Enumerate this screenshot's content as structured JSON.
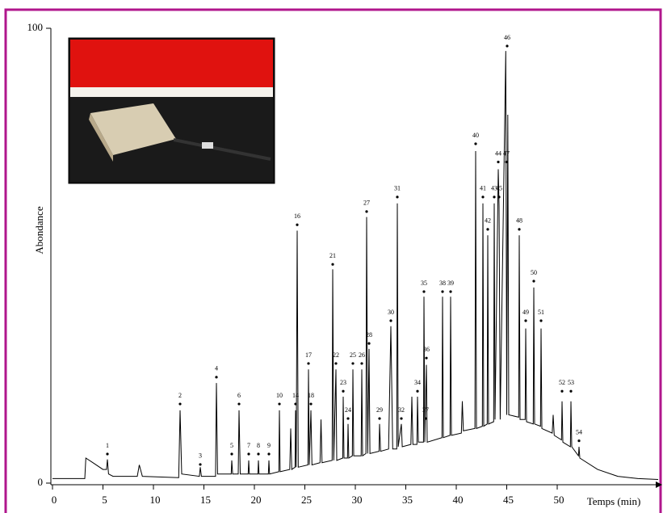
{
  "chart_data": {
    "type": "line",
    "y_label": "Abondance",
    "x_label": "Temps (min)",
    "xlim": [
      0,
      60
    ],
    "ylim": [
      0,
      100
    ],
    "xticks": [
      0,
      5,
      10,
      15,
      20,
      25,
      30,
      35,
      40,
      45,
      50
    ],
    "yticks": [
      0,
      100
    ],
    "color": "#000000",
    "x": [
      0,
      3.2,
      3.3,
      4,
      5,
      5.35,
      5.44,
      5.55,
      6,
      8.4,
      8.6,
      8.9,
      12.5,
      12.64,
      12.8,
      14.55,
      14.64,
      14.75,
      16.15,
      16.24,
      16.35,
      17.7,
      17.76,
      17.85,
      18.4,
      18.48,
      18.6,
      19.38,
      19.44,
      19.5,
      20.35,
      20.4,
      20.46,
      21.38,
      21.44,
      21.5,
      22.42,
      22.48,
      22.55,
      23.5,
      23.6,
      23.7,
      24.03,
      24.08,
      24.14,
      24.24,
      24.34,
      25.3,
      25.36,
      25.44,
      25.6,
      25.7,
      26.5,
      26.6,
      26.7,
      27.7,
      27.76,
      27.86,
      28.08,
      28.16,
      28.75,
      28.8,
      28.88,
      29.22,
      29.28,
      29.35,
      29.7,
      29.76,
      29.84,
      30.58,
      30.64,
      30.72,
      31.05,
      31.12,
      31.22,
      31.36,
      31.45,
      32.35,
      32.4,
      32.5,
      33.3,
      33.52,
      33.7,
      34.1,
      34.16,
      34.25,
      34.56,
      34.65,
      35.5,
      35.6,
      35.7,
      36.1,
      36.16,
      36.25,
      36.75,
      36.8,
      36.88,
      37.04,
      37.12,
      38.58,
      38.64,
      38.72,
      39.38,
      39.44,
      39.52,
      40.5,
      40.6,
      40.7,
      41.85,
      41.92,
      42.0,
      42.58,
      42.64,
      42.72,
      43.06,
      43.12,
      43.2,
      43.7,
      43.76,
      43.84,
      44.16,
      44.24,
      44.35,
      44.9,
      45.0,
      45.1,
      45.2,
      46.18,
      46.24,
      46.32,
      46.82,
      46.88,
      46.96,
      47.62,
      47.68,
      47.76,
      48.34,
      48.4,
      48.48,
      49.5,
      49.6,
      49.7,
      50.42,
      50.48,
      50.56,
      51.3,
      51.36,
      51.44,
      52.1,
      52.16,
      52.24,
      54,
      56,
      58,
      60
    ],
    "values": [
      1,
      1,
      5.5,
      4.5,
      3,
      3,
      5.2,
      2,
      1.5,
      1.5,
      4,
      1.5,
      1.2,
      16,
      2,
      1.5,
      3.5,
      1.5,
      1.5,
      22,
      2,
      2,
      5,
      2,
      2,
      16,
      2,
      2,
      5,
      2,
      2,
      5,
      2,
      2,
      5,
      2,
      2.5,
      16,
      2.5,
      3,
      12,
      3,
      3.5,
      16,
      3.5,
      55.5,
      3.5,
      4,
      25,
      4,
      16,
      4,
      4.5,
      14,
      4.5,
      5,
      47,
      5,
      25,
      5,
      5.5,
      19,
      5.5,
      5.5,
      13,
      5.5,
      6,
      25,
      6,
      6,
      25,
      6,
      6.5,
      58.5,
      6.5,
      29.5,
      6.5,
      7,
      13,
      7,
      7.5,
      34.5,
      7.5,
      7.5,
      61.5,
      8,
      13,
      8,
      8.5,
      19,
      8.5,
      8.5,
      19,
      9,
      9,
      41,
      9,
      26,
      9,
      10,
      41,
      10,
      10.5,
      41,
      10.5,
      11,
      18,
      11.5,
      12,
      73,
      12,
      12.5,
      61.5,
      12.5,
      13,
      54.5,
      13,
      13.5,
      61.5,
      14,
      69,
      61,
      14,
      95,
      15,
      81,
      15,
      14.5,
      54.5,
      14,
      14,
      34,
      13.5,
      13,
      43,
      13,
      12.5,
      34,
      12,
      11,
      15,
      10.5,
      9.5,
      18,
      9,
      8,
      18,
      8,
      6,
      8,
      5.5,
      3,
      1.5,
      1,
      0.8
    ],
    "peaks": {
      "labels": [
        "1",
        "2",
        "3",
        "4",
        "5",
        "6",
        "7",
        "8",
        "9",
        "10",
        "14",
        "16",
        "17",
        "18",
        "21",
        "22",
        "23",
        "24",
        "25",
        "26",
        "27",
        "28",
        "29",
        "30",
        "31",
        "32",
        "34",
        "35",
        "36",
        "37",
        "38",
        "39",
        "40",
        "41",
        "42",
        "43",
        "44",
        "45",
        "46",
        "47",
        "48",
        "49",
        "50",
        "51",
        "52",
        "53",
        "54"
      ],
      "x": [
        5.44,
        12.64,
        14.64,
        16.24,
        17.76,
        18.48,
        19.44,
        20.4,
        21.44,
        22.48,
        24.08,
        24.24,
        25.36,
        25.6,
        27.76,
        28.08,
        28.8,
        29.28,
        29.76,
        30.64,
        31.12,
        31.36,
        32.4,
        33.52,
        34.16,
        34.56,
        36.16,
        36.8,
        37.04,
        36.96,
        38.64,
        39.44,
        41.92,
        42.64,
        43.12,
        43.76,
        44.16,
        44.24,
        45.04,
        44.96,
        46.24,
        46.88,
        47.68,
        48.4,
        50.48,
        51.36,
        52.16
      ],
      "values": [
        6.4,
        17.4,
        4.1,
        23.3,
        6.4,
        17.4,
        6.4,
        6.4,
        6.4,
        17.4,
        17.4,
        56.8,
        26.3,
        17.4,
        48.1,
        26.3,
        20.2,
        14.2,
        26.3,
        26.3,
        59.7,
        30.7,
        14.2,
        35.7,
        62.9,
        14.2,
        20.2,
        42.1,
        27.5,
        14.2,
        42.1,
        42.1,
        74.6,
        62.9,
        55.8,
        62.9,
        70.6,
        62.9,
        96.1,
        70.6,
        55.8,
        35.7,
        44.4,
        35.7,
        20.2,
        20.2,
        9.3
      ]
    }
  }
}
